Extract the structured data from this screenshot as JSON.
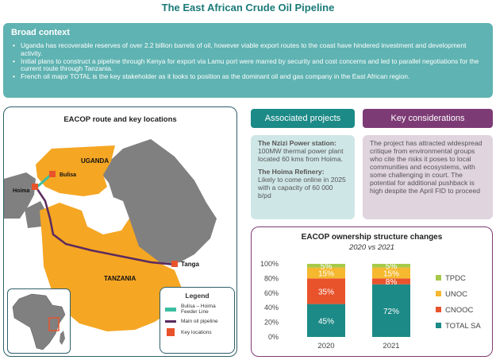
{
  "title": "The East African Crude Oil Pipeline",
  "context": {
    "heading": "Broad context",
    "bullets": [
      "Uganda has recoverable reserves of over 2.2 billion barrels of oil, however viable export routes to the coast have hindered investment and development activity.",
      "Initial plans to construct a pipeline through Kenya for export via Lamu port were marred by security and cost concerns and led to parallel negotiations for the current route through Tanzania.",
      "French oil major TOTAL is the key stakeholder as it looks to position as the dominant oil and gas company in the East African region."
    ]
  },
  "map": {
    "title": "EACOP route and key locations",
    "labels": {
      "uganda": "UGANDA",
      "tanzania": "TANZANIA",
      "bulisa": "Bulisa",
      "hoima": "Hoima",
      "tanga": "Tanga"
    },
    "legend": {
      "title": "Legend",
      "items": [
        {
          "label": "Bulisa – Hoima Feeder Line",
          "color": "#3bbfa0"
        },
        {
          "label": "Main oil pipeline",
          "color": "#5b2a5e"
        },
        {
          "label": "Key locations",
          "color": "#e8532c"
        }
      ]
    },
    "colors": {
      "countries": "#f5a623",
      "neighbours": "#808080",
      "water": "#ffffff"
    }
  },
  "associated": {
    "heading": "Associated projects",
    "items": [
      {
        "title": "The Nzizi Power station:",
        "text": "100MW thermal power plant located 60 kms from Hoima."
      },
      {
        "title": "The Hoima Refinery:",
        "text": "Likely to come online in 2025 with a capacity of 60 000 b/pd"
      }
    ]
  },
  "considerations": {
    "heading": "Key considerations",
    "text": "The project has attracted widespread critique from environmental groups who cite the risks it poses to local communities and ecosystems, with some challenging in court. The potential for additional pushback is high despite the April FID to proceed"
  },
  "chart_data": {
    "type": "bar",
    "stacked": true,
    "title": "EACOP ownership structure changes",
    "subtitle": "2020 vs 2021",
    "categories": [
      "2020",
      "2021"
    ],
    "ylim": [
      0,
      100
    ],
    "yticks": [
      "0%",
      "20%",
      "40%",
      "60%",
      "80%",
      "100%"
    ],
    "legend_position": "right",
    "series": [
      {
        "name": "TOTAL SA",
        "values": [
          45,
          72
        ],
        "labels": [
          "45%",
          "72%"
        ],
        "color": "#1c8a87"
      },
      {
        "name": "CNOOC",
        "values": [
          35,
          8
        ],
        "labels": [
          "35%",
          "8%"
        ],
        "color": "#e8532c"
      },
      {
        "name": "UNOC",
        "values": [
          15,
          15
        ],
        "labels": [
          "15%",
          "15%"
        ],
        "color": "#f5b82e"
      },
      {
        "name": "TPDC",
        "values": [
          5,
          5
        ],
        "labels": [
          "5%",
          "5%"
        ],
        "color": "#a7c94a"
      }
    ]
  }
}
